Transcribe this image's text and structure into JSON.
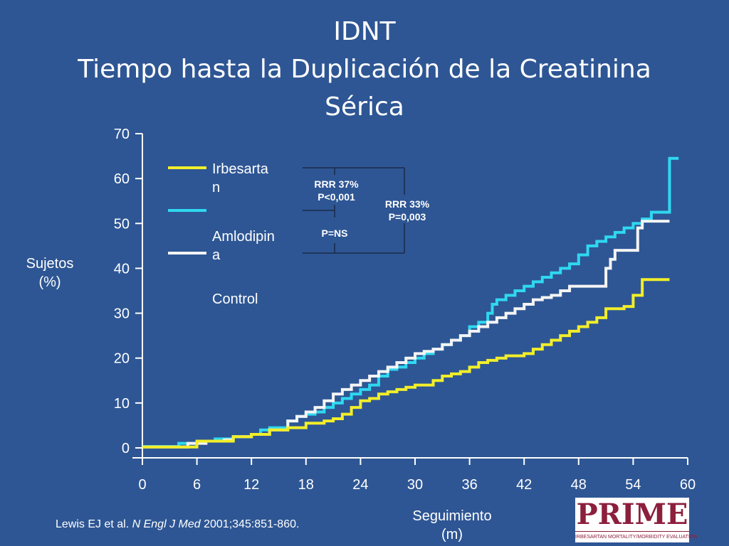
{
  "title": {
    "line1": "IDNT",
    "line2": "Tiempo hasta la Duplicación de la Creatinina",
    "line3": "Sérica"
  },
  "citation": {
    "authors": "Lewis EJ et al. ",
    "journal": "N Engl J Med",
    "ref": " 2001;345:851-860."
  },
  "logo": {
    "text": "PRIME",
    "subtitle": "IRBESARTAN MORTALITY/MORBIDITY EVALUATION"
  },
  "chart_data": {
    "type": "line",
    "xlabel": "Seguimiento (m)",
    "ylabel": "Sujetos (%)",
    "xlim": [
      0,
      60
    ],
    "ylim": [
      0,
      70
    ],
    "xticks": [
      0,
      6,
      12,
      18,
      24,
      30,
      36,
      42,
      48,
      54,
      60
    ],
    "yticks": [
      0,
      10,
      20,
      30,
      40,
      50,
      60,
      70
    ],
    "grid": false,
    "legend_position": "top-left",
    "series": [
      {
        "name": "Irbesartan",
        "color": "#f2ee2a",
        "x": [
          0,
          6,
          10,
          12,
          14,
          16,
          18,
          20,
          21,
          22,
          23,
          24,
          25,
          26,
          27,
          28,
          29,
          30,
          32,
          33,
          34,
          35,
          36,
          37,
          38,
          39,
          40,
          41,
          42,
          43,
          44,
          45,
          46,
          47,
          48,
          49,
          50,
          51,
          53,
          54,
          55,
          56,
          58
        ],
        "y": [
          0.2,
          1.5,
          2.5,
          3,
          4,
          4.5,
          5.5,
          6,
          6.5,
          7.5,
          9,
          10.5,
          11,
          12,
          12.5,
          13,
          13.5,
          14,
          15,
          16,
          16.5,
          17,
          18,
          19,
          19.5,
          20,
          20.5,
          20.5,
          21,
          22,
          23,
          24,
          25,
          26,
          27,
          28,
          29,
          31,
          31.5,
          34,
          37.5,
          37.5,
          37.5
        ]
      },
      {
        "name": "Amlodipina",
        "color": "#2fd8f0",
        "x": [
          0,
          4,
          6,
          8,
          10,
          12,
          13,
          14,
          16,
          17,
          18,
          19,
          20,
          21,
          22,
          23,
          24,
          25,
          26,
          27,
          28,
          29,
          30,
          31,
          32,
          33,
          34,
          35,
          36,
          37,
          38,
          38.5,
          39,
          40,
          41,
          42,
          43,
          44,
          45,
          46,
          47,
          48,
          49,
          50,
          51,
          52,
          53,
          54,
          55,
          56,
          57,
          57.5,
          58,
          59
        ],
        "y": [
          0.3,
          1,
          1.5,
          2,
          2.5,
          3,
          4,
          4.5,
          6,
          7,
          7.5,
          8,
          9,
          10,
          11,
          12,
          13,
          14,
          16,
          17.5,
          18,
          19,
          20,
          21,
          22,
          23,
          24,
          25,
          27,
          28,
          30,
          32,
          33,
          34,
          35,
          36,
          37,
          38,
          39,
          40,
          41,
          43,
          45,
          46,
          47,
          48,
          49,
          50,
          51,
          52.5,
          52.5,
          52.5,
          64.5,
          64.5
        ]
      },
      {
        "name": "Control",
        "color": "#f4f4f4",
        "x": [
          0,
          5,
          7,
          9,
          10,
          12,
          14,
          16,
          17,
          18,
          19,
          20,
          21,
          22,
          23,
          24,
          25,
          26,
          27,
          28,
          29,
          30,
          31,
          32,
          33,
          34,
          35,
          36,
          37,
          38,
          39,
          40,
          41,
          42,
          43,
          44,
          45,
          46,
          47,
          48,
          49,
          50,
          51,
          51.5,
          52,
          53,
          54,
          54.5,
          55,
          56,
          57,
          58
        ],
        "y": [
          0.2,
          1,
          1.5,
          1.8,
          2.5,
          3,
          4,
          6,
          7,
          8,
          9,
          10.5,
          12,
          13,
          14,
          15,
          16,
          17,
          18,
          19,
          20,
          21,
          21.5,
          22,
          23,
          24,
          25,
          26,
          27,
          28,
          29,
          30,
          31,
          32,
          33,
          33.5,
          34,
          35,
          36,
          36,
          36,
          36,
          40,
          42,
          44,
          44,
          44,
          49,
          50.5,
          50.5,
          50.5,
          50.5
        ]
      }
    ],
    "annotations": [
      {
        "rrr": "RRR 37%",
        "p": "P<0,001"
      },
      {
        "rrr": "RRR 33%",
        "p": "P=0,003"
      },
      {
        "p": "P=NS"
      }
    ]
  },
  "legend": {
    "items": [
      {
        "label_lines": [
          "Irbesarta",
          "n"
        ]
      },
      {
        "label_lines": [
          "Amlodipin",
          "a"
        ]
      },
      {
        "label_lines": [
          "Control"
        ]
      }
    ]
  },
  "ylabel_lines": [
    "Sujetos",
    "(%)"
  ],
  "xlabel_lines": [
    "Seguimiento",
    "(m)"
  ]
}
